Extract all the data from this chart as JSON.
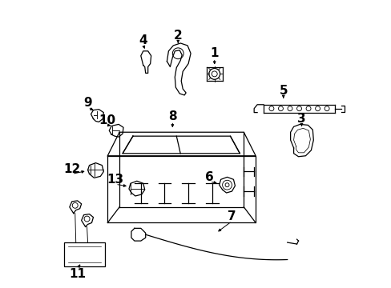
{
  "background_color": "#ffffff",
  "line_color": "#000000",
  "fig_width": 4.89,
  "fig_height": 3.6,
  "dpi": 100,
  "font_size": 11
}
